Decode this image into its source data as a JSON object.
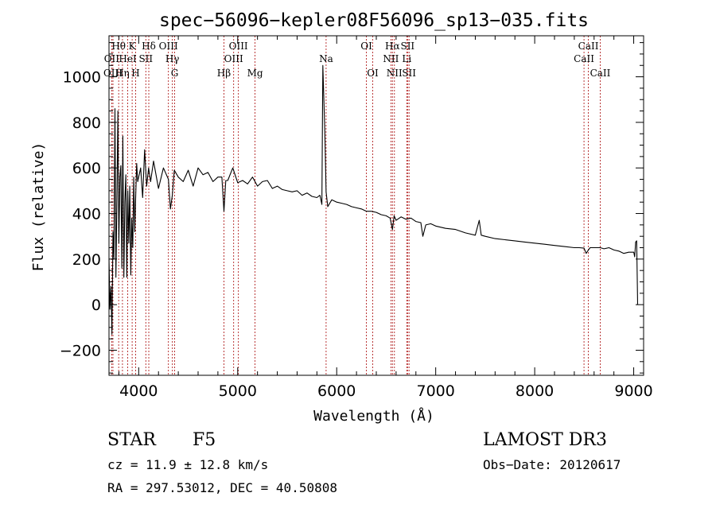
{
  "chart_data": {
    "type": "line",
    "title": "spec−56096−kepler08F56096_sp13−035.fits",
    "xlabel": "Wavelength (Å)",
    "ylabel": "Flux (relative)",
    "xlim": [
      3700,
      9100
    ],
    "ylim": [
      -310,
      1180
    ],
    "x_ticks": [
      {
        "value": 4000,
        "label": "4000"
      },
      {
        "value": 5000,
        "label": "5000"
      },
      {
        "value": 6000,
        "label": "6000"
      },
      {
        "value": 7000,
        "label": "7000"
      },
      {
        "value": 8000,
        "label": "8000"
      },
      {
        "value": 9000,
        "label": "9000"
      }
    ],
    "y_ticks": [
      {
        "value": -200,
        "label": "−200"
      },
      {
        "value": 0,
        "label": "0"
      },
      {
        "value": 200,
        "label": "200"
      },
      {
        "value": 400,
        "label": "400"
      },
      {
        "value": 600,
        "label": "600"
      },
      {
        "value": 800,
        "label": "800"
      },
      {
        "value": 1000,
        "label": "1000"
      }
    ],
    "spectral_lines": [
      {
        "label": "Hθ",
        "wavelength": 3798,
        "row": 1
      },
      {
        "label": "OII",
        "wavelength": 3727,
        "row": 2
      },
      {
        "label": "OIII",
        "wavelength": 3740,
        "row": 3
      },
      {
        "label": "Hη",
        "wavelength": 3836,
        "row": 3
      },
      {
        "label": "HeI",
        "wavelength": 3889,
        "row": 2
      },
      {
        "label": "K",
        "wavelength": 3934,
        "row": 1
      },
      {
        "label": "H",
        "wavelength": 3969,
        "row": 3
      },
      {
        "label": "SII",
        "wavelength": 4072,
        "row": 2
      },
      {
        "label": "Hδ",
        "wavelength": 4102,
        "row": 1
      },
      {
        "label": "OIII",
        "wavelength": 4300,
        "row": 1
      },
      {
        "label": "Hγ",
        "wavelength": 4340,
        "row": 2
      },
      {
        "label": "G",
        "wavelength": 4363,
        "row": 3
      },
      {
        "label": "Hβ",
        "wavelength": 4861,
        "row": 3
      },
      {
        "label": "OIII",
        "wavelength": 4959,
        "row": 2
      },
      {
        "label": "OIII",
        "wavelength": 5007,
        "row": 1
      },
      {
        "label": "Mg",
        "wavelength": 5175,
        "row": 3
      },
      {
        "label": "Na",
        "wavelength": 5893,
        "row": 2
      },
      {
        "label": "OI",
        "wavelength": 6300,
        "row": 1
      },
      {
        "label": "OI",
        "wavelength": 6364,
        "row": 3
      },
      {
        "label": "NII",
        "wavelength": 6548,
        "row": 2
      },
      {
        "label": "Hα",
        "wavelength": 6563,
        "row": 1
      },
      {
        "label": "NII",
        "wavelength": 6583,
        "row": 3
      },
      {
        "label": "SII",
        "wavelength": 6716,
        "row": 1
      },
      {
        "label": "Li",
        "wavelength": 6708,
        "row": 2
      },
      {
        "label": "SII",
        "wavelength": 6731,
        "row": 3
      },
      {
        "label": "CaII",
        "wavelength": 8498,
        "row": 2
      },
      {
        "label": "CaII",
        "wavelength": 8542,
        "row": 1
      },
      {
        "label": "CaII",
        "wavelength": 8662,
        "row": 3
      }
    ],
    "series": [
      {
        "name": "flux",
        "x": [
          3700,
          3710,
          3720,
          3730,
          3740,
          3750,
          3760,
          3770,
          3780,
          3790,
          3800,
          3810,
          3820,
          3830,
          3840,
          3850,
          3860,
          3870,
          3880,
          3890,
          3900,
          3910,
          3920,
          3930,
          3940,
          3950,
          3960,
          3970,
          3980,
          3990,
          4000,
          4020,
          4040,
          4060,
          4080,
          4100,
          4120,
          4150,
          4200,
          4250,
          4300,
          4320,
          4340,
          4360,
          4400,
          4450,
          4500,
          4550,
          4600,
          4650,
          4700,
          4750,
          4800,
          4840,
          4861,
          4880,
          4900,
          4950,
          5000,
          5050,
          5100,
          5150,
          5200,
          5250,
          5300,
          5350,
          5400,
          5450,
          5500,
          5550,
          5600,
          5650,
          5700,
          5750,
          5800,
          5830,
          5850,
          5860,
          5880,
          5893,
          5910,
          5950,
          6000,
          6050,
          6100,
          6150,
          6200,
          6250,
          6300,
          6350,
          6400,
          6450,
          6500,
          6540,
          6563,
          6580,
          6600,
          6650,
          6700,
          6750,
          6800,
          6850,
          6870,
          6900,
          6950,
          7000,
          7100,
          7200,
          7300,
          7400,
          7440,
          7460,
          7500,
          7600,
          7700,
          7800,
          7900,
          8000,
          8100,
          8200,
          8300,
          8400,
          8450,
          8498,
          8520,
          8542,
          8560,
          8600,
          8662,
          8700,
          8750,
          8800,
          8850,
          8900,
          8950,
          9000,
          9010,
          9020,
          9030,
          9040
        ],
        "y": [
          200,
          -20,
          80,
          -130,
          320,
          200,
          860,
          120,
          480,
          850,
          270,
          560,
          610,
          160,
          740,
          120,
          450,
          570,
          120,
          500,
          270,
          520,
          130,
          380,
          250,
          560,
          320,
          480,
          620,
          540,
          560,
          600,
          470,
          680,
          520,
          600,
          540,
          630,
          510,
          600,
          550,
          420,
          480,
          590,
          560,
          540,
          590,
          520,
          600,
          570,
          580,
          540,
          560,
          560,
          410,
          545,
          545,
          600,
          535,
          545,
          530,
          560,
          520,
          540,
          545,
          510,
          520,
          505,
          500,
          495,
          500,
          480,
          490,
          475,
          470,
          480,
          440,
          1050,
          760,
          495,
          430,
          460,
          450,
          445,
          440,
          430,
          425,
          420,
          410,
          410,
          405,
          395,
          390,
          380,
          330,
          390,
          370,
          385,
          375,
          380,
          365,
          360,
          300,
          350,
          355,
          345,
          335,
          330,
          315,
          305,
          370,
          305,
          300,
          290,
          285,
          280,
          275,
          270,
          265,
          260,
          255,
          250,
          250,
          248,
          225,
          240,
          250,
          250,
          250,
          245,
          250,
          240,
          235,
          225,
          230,
          230,
          210,
          275,
          280,
          0
        ]
      }
    ]
  },
  "info": {
    "object_class": "STAR",
    "subclass": "F5",
    "survey": "LAMOST DR3",
    "cz": "cz = 11.9 ± 12.8 km/s",
    "obs_date": "Obs−Date: 20120617",
    "coords": "RA = 297.53012, DEC =  40.50808"
  }
}
